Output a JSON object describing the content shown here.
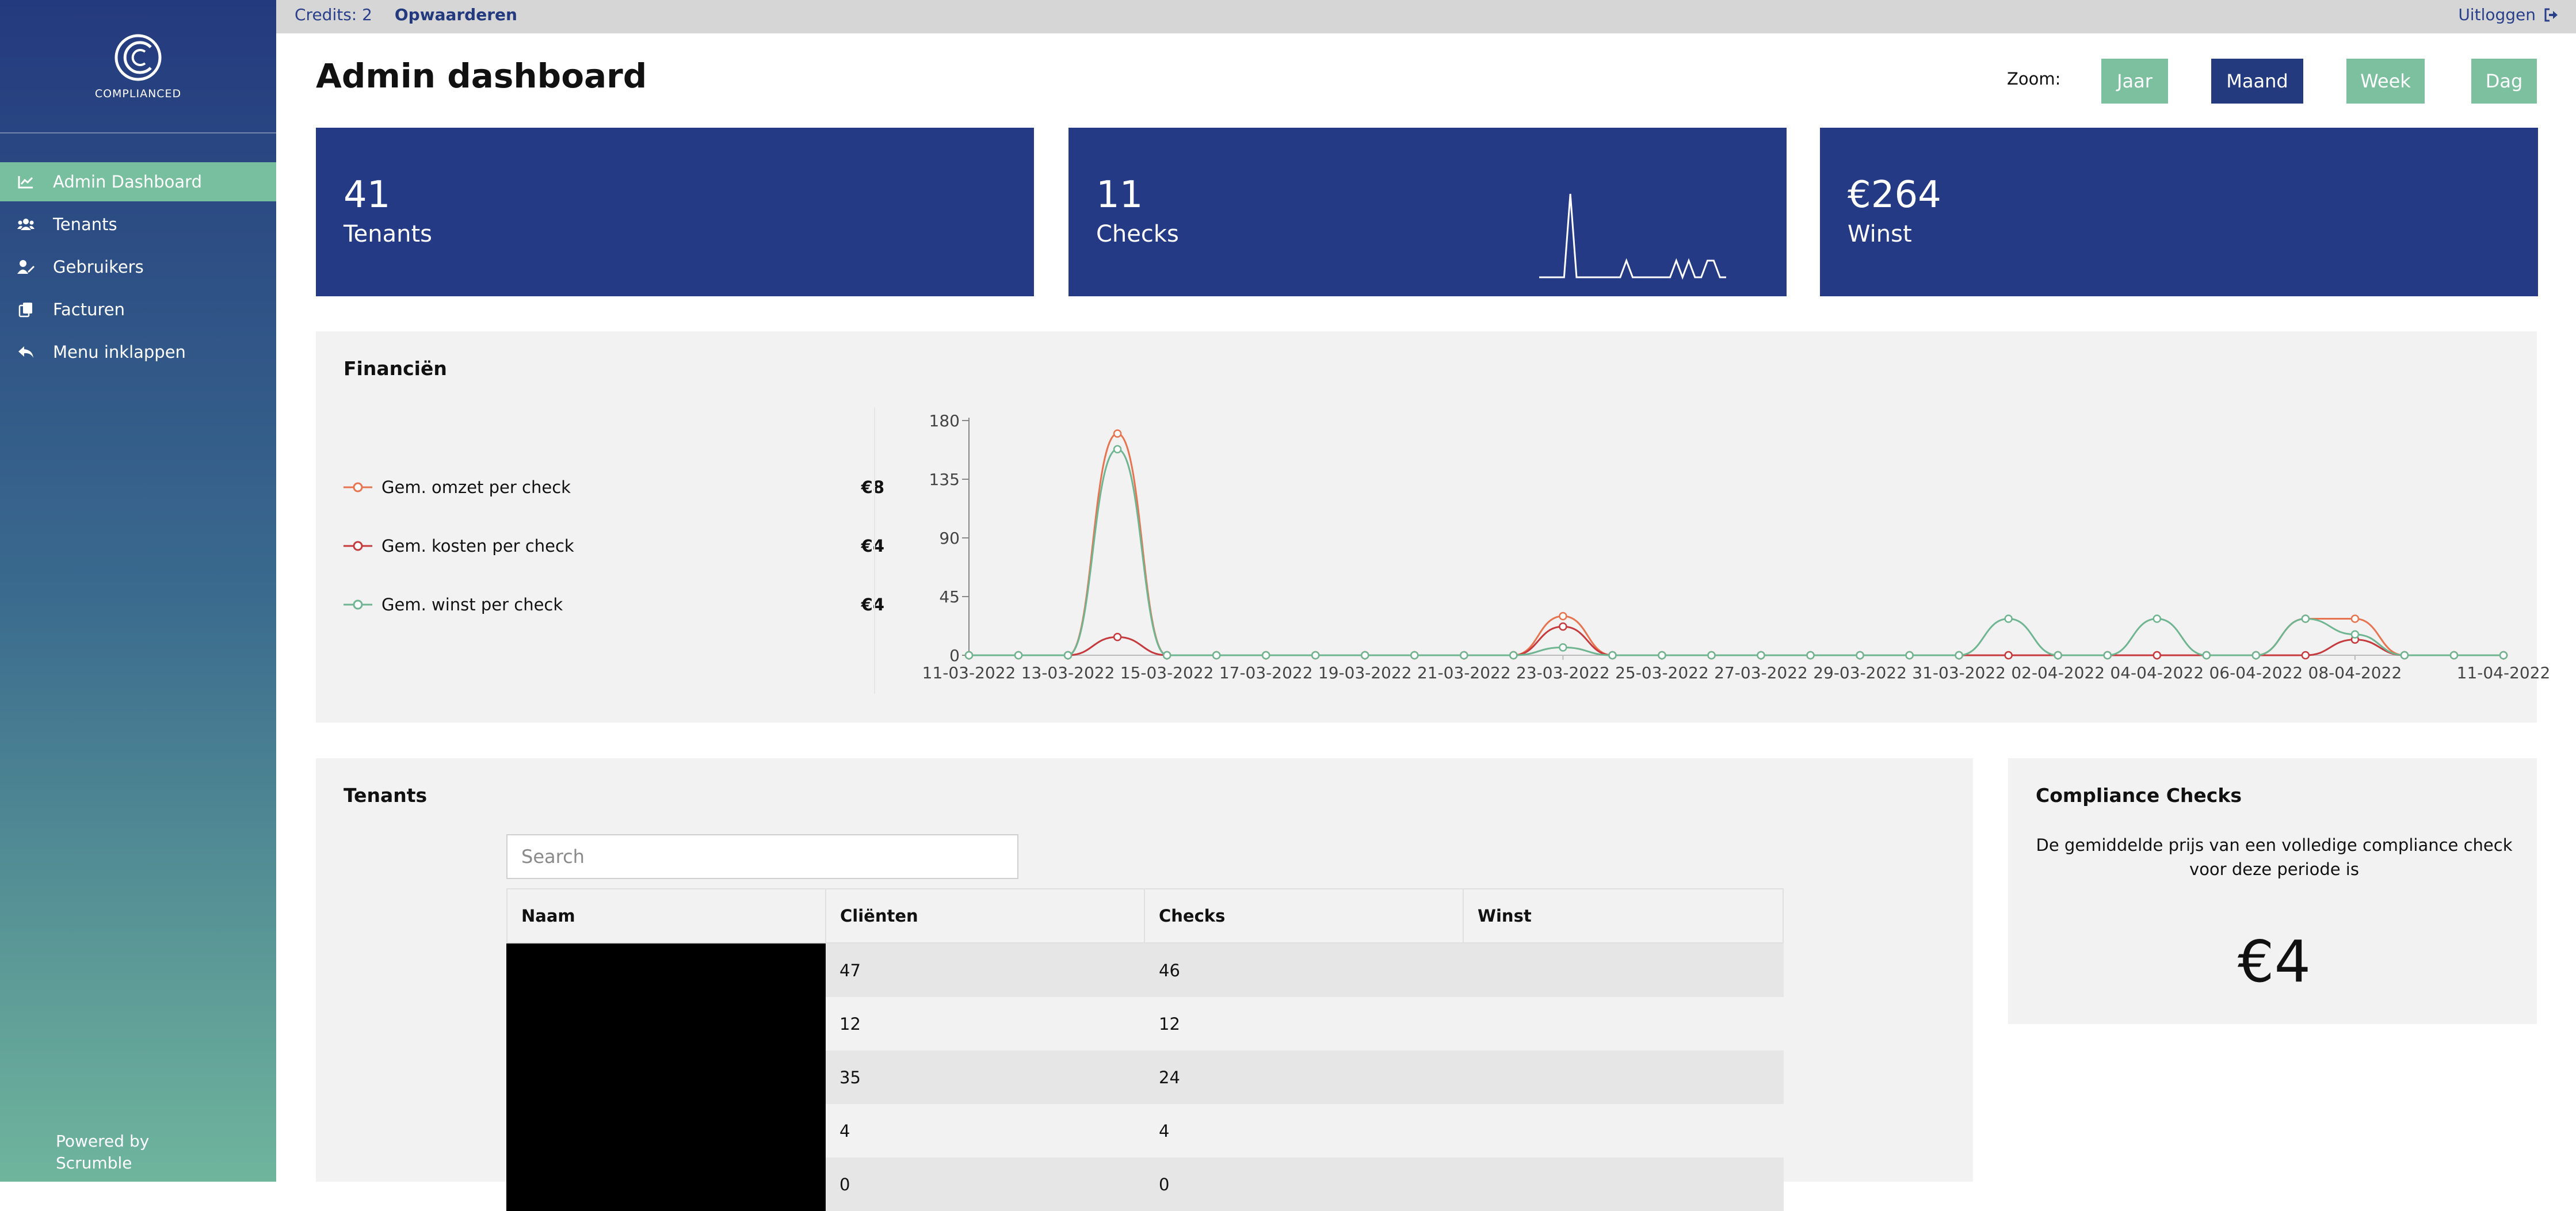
{
  "brand": {
    "logo_text": "COMPLIANCED"
  },
  "sidebar": {
    "items": [
      {
        "label": "Admin Dashboard",
        "icon": "chart-line-icon",
        "active": true
      },
      {
        "label": "Tenants",
        "icon": "users-icon",
        "active": false
      },
      {
        "label": "Gebruikers",
        "icon": "user-edit-icon",
        "active": false
      },
      {
        "label": "Facturen",
        "icon": "copy-icon",
        "active": false
      },
      {
        "label": "Menu inklappen",
        "icon": "reply-icon",
        "active": false
      }
    ],
    "powered_line1": "Powered by",
    "powered_line2": "Scrumble"
  },
  "topbar": {
    "credits": "Credits: 2",
    "topup": "Opwaarderen",
    "logout": "Uitloggen"
  },
  "header": {
    "title": "Admin dashboard",
    "zoom_label": "Zoom:",
    "zoom_options": [
      "Jaar",
      "Maand",
      "Week",
      "Dag"
    ],
    "zoom_selected": "Maand"
  },
  "kpis": [
    {
      "value": "41",
      "label": "Tenants"
    },
    {
      "value": "11",
      "label": "Checks"
    },
    {
      "value": "€264",
      "label": "Winst"
    }
  ],
  "colors": {
    "primary": "#243a85",
    "accent_green": "#7cc0a0",
    "omzet": "#e8734f",
    "kosten": "#c6393d",
    "winst": "#6fb592"
  },
  "finance": {
    "title": "Financiën",
    "legend": [
      {
        "label": "Gem. omzet per check",
        "value": "€8"
      },
      {
        "label": "Gem. kosten per check",
        "value": "€4"
      },
      {
        "label": "Gem. winst per check",
        "value": "€4"
      }
    ]
  },
  "chart_data": {
    "type": "line",
    "x": [
      "11-03-2022",
      "12-03-2022",
      "13-03-2022",
      "14-03-2022",
      "15-03-2022",
      "16-03-2022",
      "17-03-2022",
      "18-03-2022",
      "19-03-2022",
      "20-03-2022",
      "21-03-2022",
      "22-03-2022",
      "23-03-2022",
      "24-03-2022",
      "25-03-2022",
      "26-03-2022",
      "27-03-2022",
      "28-03-2022",
      "29-03-2022",
      "30-03-2022",
      "31-03-2022",
      "01-04-2022",
      "02-04-2022",
      "03-04-2022",
      "04-04-2022",
      "05-04-2022",
      "06-04-2022",
      "07-04-2022",
      "08-04-2022",
      "09-04-2022",
      "10-04-2022",
      "11-04-2022"
    ],
    "x_tick_labels": [
      "11-03-2022",
      "13-03-2022",
      "15-03-2022",
      "17-03-2022",
      "19-03-2022",
      "21-03-2022",
      "23-03-2022",
      "25-03-2022",
      "27-03-2022",
      "29-03-2022",
      "31-03-2022",
      "02-04-2022",
      "04-04-2022",
      "06-04-2022",
      "08-04-2022",
      "11-04-2022"
    ],
    "y_ticks": [
      0,
      45,
      90,
      135,
      180
    ],
    "ylim": [
      0,
      180
    ],
    "series": [
      {
        "name": "Gem. omzet per check",
        "color": "#e8734f",
        "values": [
          0,
          0,
          0,
          170,
          0,
          0,
          0,
          0,
          0,
          0,
          0,
          0,
          30,
          0,
          0,
          0,
          0,
          0,
          0,
          0,
          0,
          0,
          0,
          0,
          0,
          0,
          0,
          28,
          28,
          0,
          0,
          0
        ]
      },
      {
        "name": "Gem. kosten per check",
        "color": "#c6393d",
        "values": [
          0,
          0,
          0,
          14,
          0,
          0,
          0,
          0,
          0,
          0,
          0,
          0,
          22,
          0,
          0,
          0,
          0,
          0,
          0,
          0,
          0,
          0,
          0,
          0,
          0,
          0,
          0,
          0,
          12,
          0,
          0,
          0
        ]
      },
      {
        "name": "Gem. winst per check",
        "color": "#6fb592",
        "values": [
          0,
          0,
          0,
          158,
          0,
          0,
          0,
          0,
          0,
          0,
          0,
          0,
          6,
          0,
          0,
          0,
          0,
          0,
          0,
          0,
          0,
          28,
          0,
          0,
          28,
          0,
          0,
          28,
          16,
          0,
          0,
          0
        ]
      }
    ],
    "grid": false,
    "legend": "left"
  },
  "kpi_sparkline": [
    0,
    0,
    0,
    0,
    0,
    1,
    0,
    0,
    0,
    0,
    0,
    0,
    0,
    0,
    0.2,
    0,
    0,
    0,
    0,
    0,
    0,
    0,
    0.2,
    0,
    0.2,
    0,
    0,
    0.2,
    0.2,
    0,
    0
  ],
  "tenants": {
    "title": "Tenants",
    "search_placeholder": "Search",
    "columns": [
      "Naam",
      "Cliënten",
      "Checks",
      "Winst"
    ],
    "rows": [
      {
        "naam": "",
        "clienten": "47",
        "checks": "46",
        "winst": ""
      },
      {
        "naam": "",
        "clienten": "12",
        "checks": "12",
        "winst": ""
      },
      {
        "naam": "",
        "clienten": "35",
        "checks": "24",
        "winst": ""
      },
      {
        "naam": "",
        "clienten": "4",
        "checks": "4",
        "winst": ""
      },
      {
        "naam": "",
        "clienten": "0",
        "checks": "0",
        "winst": ""
      }
    ]
  },
  "compliance": {
    "title": "Compliance Checks",
    "description": "De gemiddelde prijs van een volledige compliance check voor deze periode is",
    "value": "€4"
  }
}
